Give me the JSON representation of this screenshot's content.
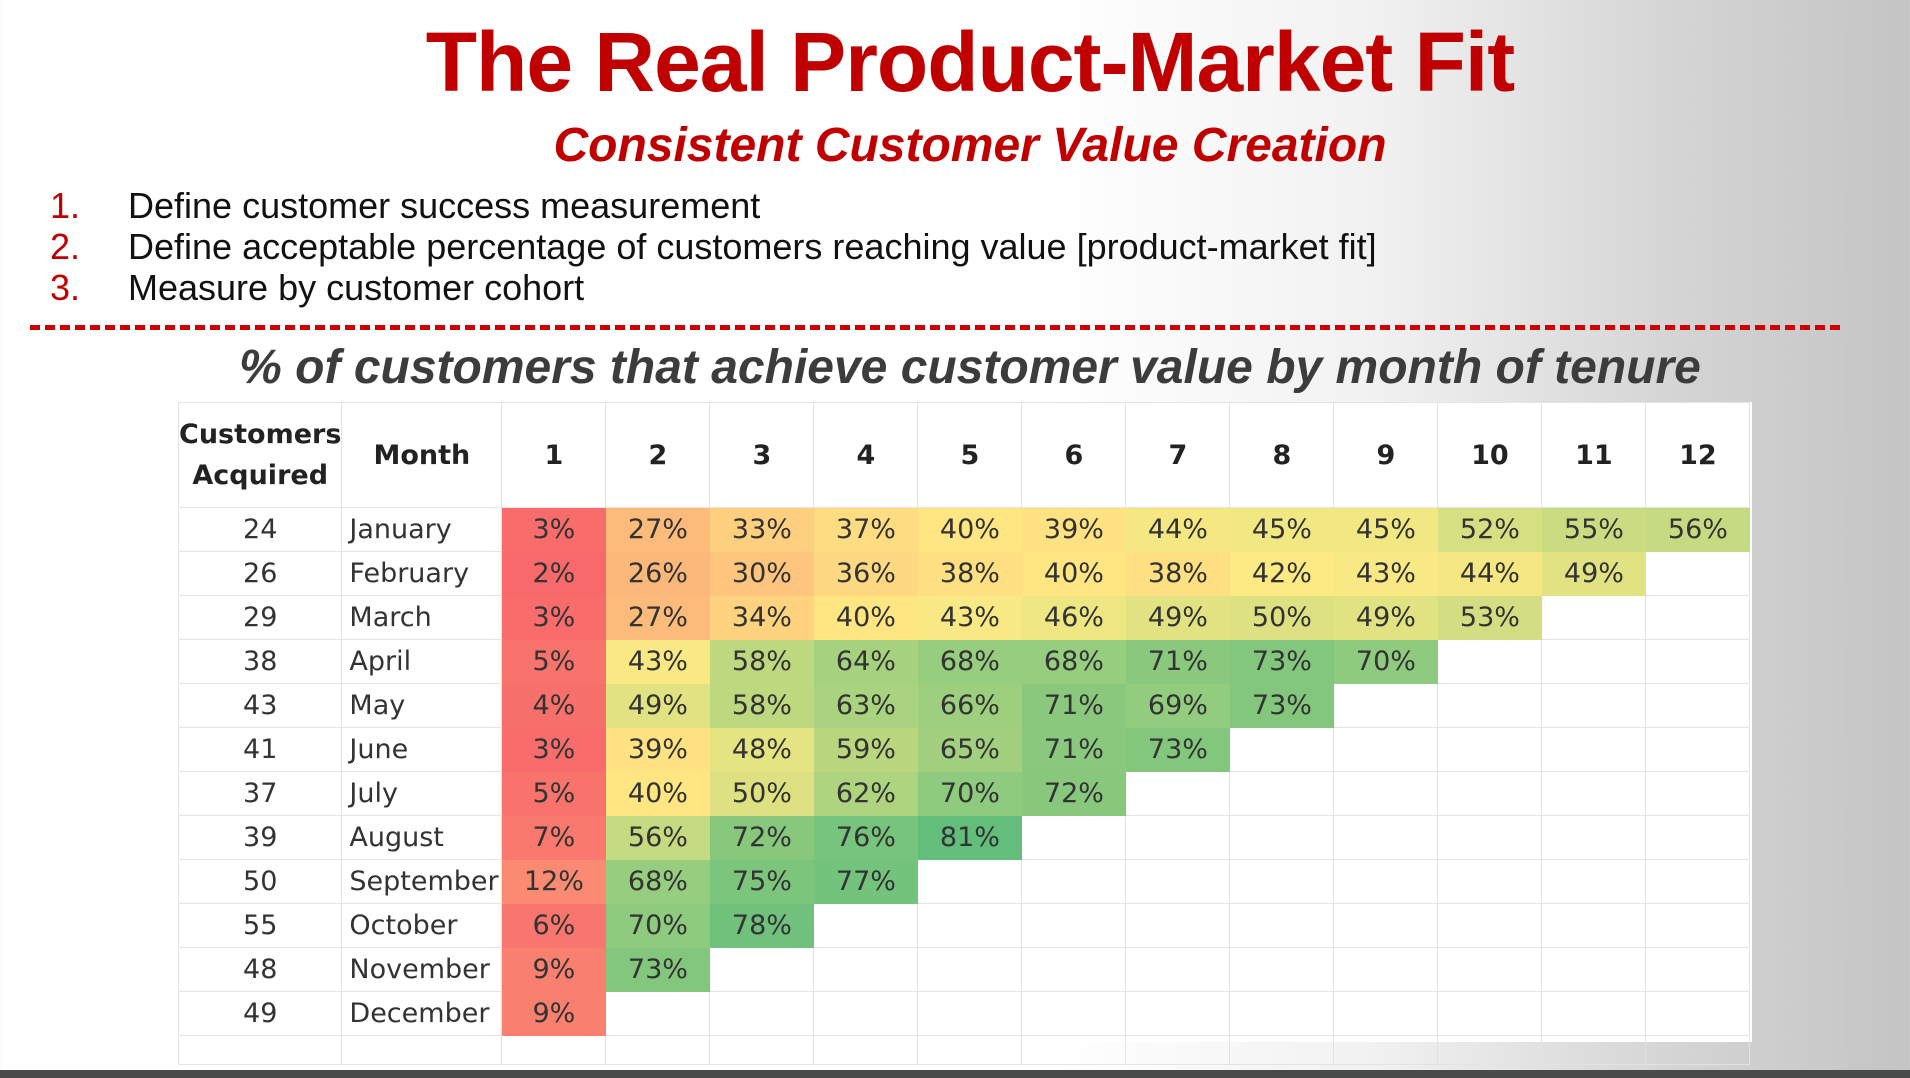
{
  "title": "The Real Product-Market Fit",
  "subtitle": "Consistent Customer Value Creation",
  "steps": [
    {
      "num": "1.",
      "text": "Define customer success measurement"
    },
    {
      "num": "2.",
      "text": "Define acceptable percentage of customers reaching value [product-market fit]"
    },
    {
      "num": "3.",
      "text": "Measure by customer cohort"
    }
  ],
  "table_title": "% of customers that achieve customer value by month of tenure",
  "chart_data": {
    "type": "heatmap",
    "title": "% of customers that achieve customer value by month of tenure",
    "columns": {
      "customers_acquired_line1": "Customers",
      "customers_acquired_line2": "Acquired",
      "month": "Month",
      "tenure": [
        "1",
        "2",
        "3",
        "4",
        "5",
        "6",
        "7",
        "8",
        "9",
        "10",
        "11",
        "12"
      ]
    },
    "rows": [
      {
        "acquired": 24,
        "month": "January",
        "values": [
          3,
          27,
          33,
          37,
          40,
          39,
          44,
          45,
          45,
          52,
          55,
          56
        ]
      },
      {
        "acquired": 26,
        "month": "February",
        "values": [
          2,
          26,
          30,
          36,
          38,
          40,
          38,
          42,
          43,
          44,
          49
        ]
      },
      {
        "acquired": 29,
        "month": "March",
        "values": [
          3,
          27,
          34,
          40,
          43,
          46,
          49,
          50,
          49,
          53
        ]
      },
      {
        "acquired": 38,
        "month": "April",
        "values": [
          5,
          43,
          58,
          64,
          68,
          68,
          71,
          73,
          70
        ]
      },
      {
        "acquired": 43,
        "month": "May",
        "values": [
          4,
          49,
          58,
          63,
          66,
          71,
          69,
          73
        ]
      },
      {
        "acquired": 41,
        "month": "June",
        "values": [
          3,
          39,
          48,
          59,
          65,
          71,
          73
        ]
      },
      {
        "acquired": 37,
        "month": "July",
        "values": [
          5,
          40,
          50,
          62,
          70,
          72
        ]
      },
      {
        "acquired": 39,
        "month": "August",
        "values": [
          7,
          56,
          72,
          76,
          81
        ]
      },
      {
        "acquired": 50,
        "month": "September",
        "values": [
          12,
          68,
          75,
          77
        ]
      },
      {
        "acquired": 55,
        "month": "October",
        "values": [
          6,
          70,
          78
        ]
      },
      {
        "acquired": 48,
        "month": "November",
        "values": [
          9,
          73
        ]
      },
      {
        "acquired": 49,
        "month": "December",
        "values": [
          9
        ]
      }
    ],
    "color_scale": {
      "low": "#f8696b",
      "mid": "#ffeb84",
      "high": "#63be7b"
    },
    "empty_rows": 1
  }
}
